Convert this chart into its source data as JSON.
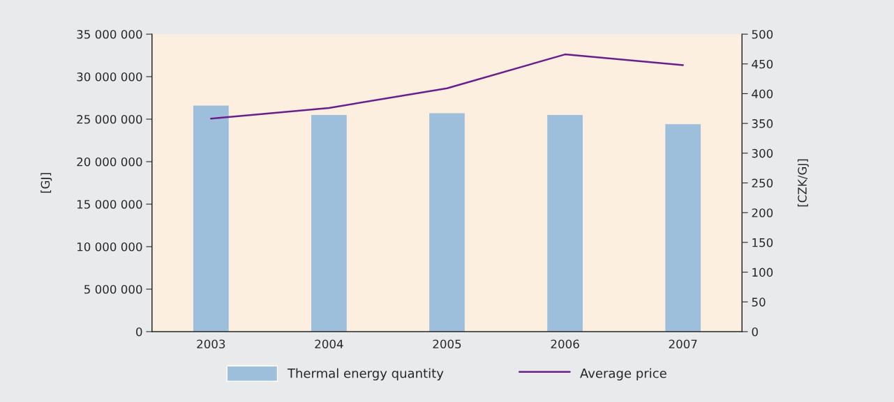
{
  "chart_data": {
    "type": "bar",
    "categories": [
      "2003",
      "2004",
      "2005",
      "2006",
      "2007"
    ],
    "series": [
      {
        "name": "Thermal energy quantity",
        "color": "#9dbfdc",
        "values": [
          26600000,
          25500000,
          25700000,
          25500000,
          24400000
        ]
      },
      {
        "name": "Average price",
        "type": "line",
        "axis": "y2",
        "color": "#6a1e8c",
        "values": [
          358,
          376,
          409,
          466,
          448
        ]
      }
    ],
    "ylabel": "[GJ]",
    "y2label": "[CZK/GJ]",
    "ylim": [
      0,
      35000000
    ],
    "yticks": [
      {
        "value": 0,
        "label": "0"
      },
      {
        "value": 5000000,
        "label": "5 000 000"
      },
      {
        "value": 10000000,
        "label": "10 000 000"
      },
      {
        "value": 15000000,
        "label": "15 000 000"
      },
      {
        "value": 20000000,
        "label": "20 000 000"
      },
      {
        "value": 25000000,
        "label": "25 000 000"
      },
      {
        "value": 30000000,
        "label": "30 000 000"
      },
      {
        "value": 35000000,
        "label": "35 000 000"
      }
    ],
    "y2lim": [
      0,
      500
    ],
    "y2ticks": [
      0,
      50,
      100,
      150,
      200,
      250,
      300,
      350,
      400,
      450,
      500
    ],
    "legend": "bottom",
    "grid": false
  }
}
